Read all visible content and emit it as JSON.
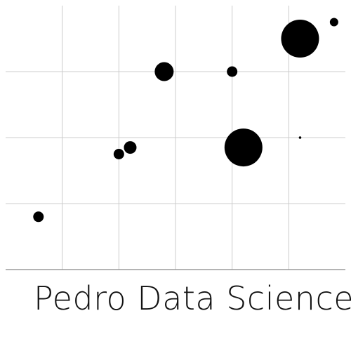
{
  "brand": {
    "name": "Pedro Data Science"
  },
  "chart_data": {
    "type": "scatter",
    "title": "",
    "xlabel": "",
    "ylabel": "",
    "xlim": [
      0,
      6
    ],
    "ylim": [
      0,
      4
    ],
    "xticks": [
      1,
      2,
      3,
      4,
      5
    ],
    "yticks": [
      1,
      2,
      3
    ],
    "grid": true,
    "legend": "none",
    "color": "#000000",
    "points": [
      {
        "x": 0.58,
        "y": 0.8,
        "size": 2.5
      },
      {
        "x": 2.0,
        "y": 1.75,
        "size": 2.5
      },
      {
        "x": 2.2,
        "y": 1.85,
        "size": 3.0
      },
      {
        "x": 2.8,
        "y": 3.0,
        "size": 4.5
      },
      {
        "x": 4.0,
        "y": 3.0,
        "size": 2.5
      },
      {
        "x": 4.2,
        "y": 1.85,
        "size": 9.0
      },
      {
        "x": 5.2,
        "y": 2.0,
        "size": 0.5
      },
      {
        "x": 5.2,
        "y": 3.5,
        "size": 9.0
      },
      {
        "x": 5.8,
        "y": 3.75,
        "size": 2.0
      }
    ]
  }
}
